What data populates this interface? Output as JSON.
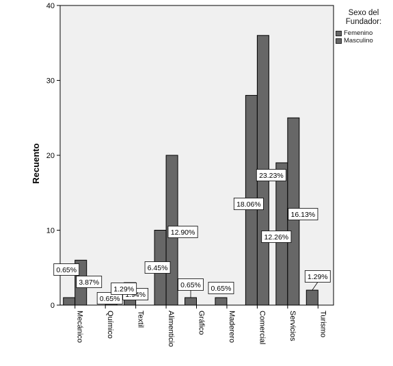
{
  "chart_data": {
    "type": "bar",
    "ylabel": "Recuento",
    "xlabel": "",
    "ylim": [
      0,
      40
    ],
    "yticks": [
      0,
      10,
      20,
      30,
      40
    ],
    "grid": false,
    "legend_title": "Sexo del Fundador:",
    "legend_position": "right-top",
    "categories": [
      "Mecánico",
      "Químico",
      "Textil",
      "Alimenticio",
      "Gráfico",
      "Maderero",
      "Comercial",
      "Servicios",
      "Turismo"
    ],
    "series": [
      {
        "name": "Femenino",
        "color": "#676767",
        "values": [
          1,
          0,
          3,
          10,
          1,
          1,
          28,
          19,
          2
        ],
        "labels": [
          "0.65%",
          null,
          "1.94%",
          "6.45%",
          "0.65%",
          "0.65%",
          "18.06%",
          "12.26%",
          "1.29%"
        ]
      },
      {
        "name": "Masculino",
        "color": "#676767",
        "values": [
          6,
          1,
          0,
          20,
          0,
          0,
          36,
          25,
          0
        ],
        "labels": [
          "3.87%",
          "0.65%",
          null,
          "12.90%",
          null,
          null,
          "23.23%",
          "16.13%",
          null
        ]
      }
    ],
    "extra_labels": [
      {
        "category": "Químico",
        "text": "1.29%"
      }
    ]
  }
}
